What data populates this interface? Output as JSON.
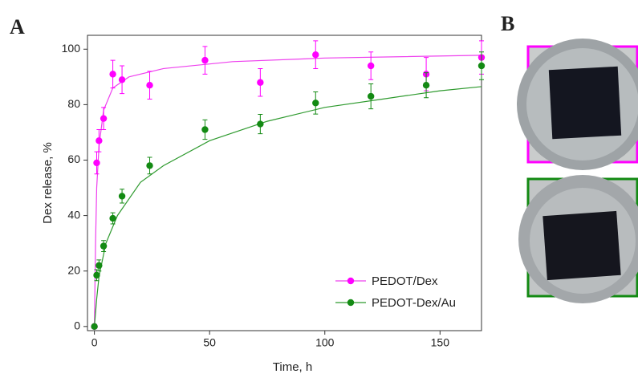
{
  "panel_labels": [
    "A",
    "B"
  ],
  "chart_data": {
    "type": "scatter",
    "x_label": "Time, h",
    "y_label": "Dex release, %",
    "xlim": [
      -3,
      168
    ],
    "ylim": [
      -1.5,
      105
    ],
    "xticks": [
      0,
      50,
      100,
      150
    ],
    "yticks": [
      0,
      20,
      40,
      60,
      80,
      100
    ],
    "legend": "lower-right",
    "series": [
      {
        "name": "PEDOT/Dex",
        "color": "#ff00ff",
        "x": [
          0,
          1,
          2,
          4,
          8,
          12,
          24,
          48,
          72,
          96,
          120,
          144,
          168
        ],
        "values": [
          0,
          59,
          67,
          75,
          91,
          89,
          87,
          96,
          88,
          98,
          94,
          91,
          97
        ],
        "errors": [
          0,
          4,
          4,
          4,
          5,
          5,
          5,
          5,
          5,
          5,
          5,
          6,
          6
        ]
      },
      {
        "name": "PEDOT-Dex/Au",
        "color": "#138a13",
        "x": [
          0,
          1,
          2,
          4,
          8,
          12,
          24,
          48,
          72,
          96,
          120,
          144,
          168
        ],
        "values": [
          0,
          18.5,
          22,
          29,
          39,
          47,
          58,
          71,
          73,
          80.6,
          83,
          87,
          94
        ],
        "errors": [
          0,
          2,
          2,
          2,
          2,
          2.5,
          3,
          3.5,
          3.5,
          4,
          4.5,
          4.5,
          5
        ]
      }
    ],
    "fits": [
      {
        "color": "#ee40ee",
        "x": [
          0,
          0.5,
          1,
          2,
          4,
          8,
          15,
          30,
          60,
          100,
          168
        ],
        "values": [
          0,
          30,
          50,
          65,
          78,
          86,
          90,
          93,
          95.5,
          96.8,
          97.8
        ]
      },
      {
        "color": "#2e9a2e",
        "x": [
          0,
          1,
          2,
          5,
          10,
          20,
          30,
          50,
          75,
          100,
          125,
          150,
          168
        ],
        "values": [
          0,
          10,
          18,
          30,
          40,
          52,
          58,
          67,
          74,
          79,
          82,
          85,
          86.5
        ]
      }
    ]
  }
}
